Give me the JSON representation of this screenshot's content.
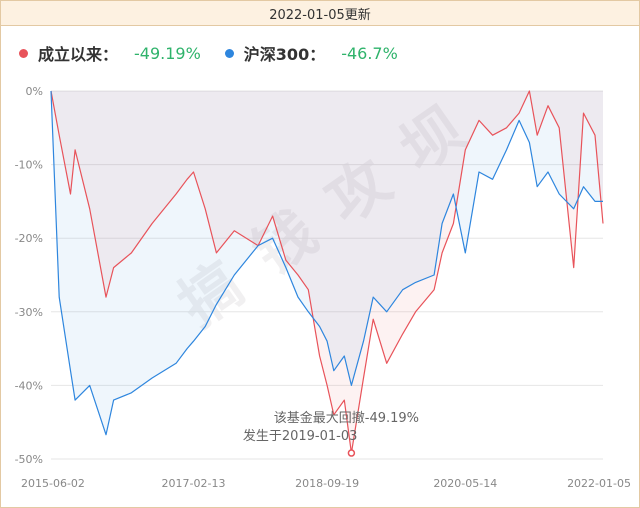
{
  "header": {
    "date_label": "2022-01-05更新"
  },
  "legend": [
    {
      "name": "成立以来：",
      "value": "-49.19%",
      "color": "#e8535a"
    },
    {
      "name": "沪深300：",
      "value": "-46.7%",
      "color": "#2e86de"
    }
  ],
  "annotation": {
    "line1": "该基金最大回撤-49.19%",
    "line2": "发生于2019-01-03"
  },
  "watermark": "搞钱攻坝",
  "chart_data": {
    "type": "area",
    "x": [
      "2015-06-02",
      "2015-07-08",
      "2015-08-26",
      "2015-09-15",
      "2015-11-18",
      "2016-01-28",
      "2016-03-01",
      "2016-05-18",
      "2016-08-16",
      "2016-11-29",
      "2017-01-16",
      "2017-02-13",
      "2017-04-05",
      "2017-05-24",
      "2017-08-10",
      "2017-11-22",
      "2018-01-24",
      "2018-03-23",
      "2018-05-15",
      "2018-06-29",
      "2018-08-17",
      "2018-09-19",
      "2018-10-18",
      "2018-12-03",
      "2019-01-03",
      "2019-02-25",
      "2019-04-08",
      "2019-06-06",
      "2019-08-15",
      "2019-10-10",
      "2019-12-30",
      "2020-02-03",
      "2020-03-23",
      "2020-05-14",
      "2020-07-13",
      "2020-09-10",
      "2020-11-10",
      "2021-01-04",
      "2021-02-18",
      "2021-03-24",
      "2021-05-10",
      "2021-06-28",
      "2021-08-30",
      "2021-10-12",
      "2021-12-01",
      "2022-01-05"
    ],
    "series": [
      {
        "name": "成立以来：",
        "values": [
          0,
          -6,
          -14,
          -8,
          -16,
          -28,
          -24,
          -22,
          -18,
          -14,
          -12,
          -11,
          -16,
          -22,
          -19,
          -21,
          -17,
          -23,
          -25,
          -27,
          -36,
          -40,
          -44,
          -42,
          -49.19,
          -39,
          -31,
          -37,
          -33,
          -30,
          -27,
          -22,
          -18,
          -8,
          -4,
          -6,
          -5,
          -3,
          0,
          -6,
          -2,
          -5,
          -24,
          -3,
          -6,
          -18
        ]
      },
      {
        "name": "沪深300：",
        "values": [
          0,
          -28,
          -38,
          -42,
          -40,
          -46.7,
          -42,
          -41,
          -39,
          -37,
          -35,
          -34,
          -32,
          -29,
          -25,
          -21,
          -20,
          -24,
          -28,
          -30,
          -32,
          -34,
          -38,
          -36,
          -40,
          -34,
          -28,
          -30,
          -27,
          -26,
          -25,
          -18,
          -14,
          -22,
          -11,
          -12,
          -8,
          -4,
          -7,
          -13,
          -11,
          -14,
          -16,
          -13,
          -15,
          -15
        ]
      }
    ],
    "x_tick_labels": [
      "2015-06-02",
      "2017-02-13",
      "2018-09-19",
      "2020-05-14",
      "2022-01-05"
    ],
    "y_ticks": [
      0,
      -10,
      -20,
      -30,
      -40,
      -50
    ],
    "y_tick_labels": [
      "0%",
      "-10%",
      "-20%",
      "-30%",
      "-40%",
      "-50%"
    ],
    "ylim": [
      -50,
      0
    ],
    "max_drawdown_point": {
      "date": "2019-01-03",
      "value": -49.19
    },
    "grid": true,
    "legend_position": "top-left"
  }
}
